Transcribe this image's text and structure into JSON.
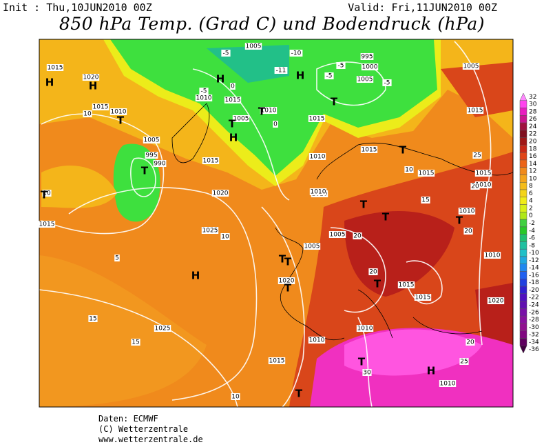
{
  "header": {
    "init": "Init : Thu,10JUN2010 00Z",
    "valid": "Valid: Fri,11JUN2010 00Z",
    "title": "850 hPa Temp. (Grad C) und Bodendruck (hPa)"
  },
  "map_labels": [
    "1015",
    "1020",
    "H",
    "H",
    "10",
    "1015",
    "1010",
    "T",
    "1005",
    "-5",
    "-10",
    "995",
    "1000",
    "-5",
    "-5",
    "1005",
    "-5",
    "-11",
    "H",
    "H",
    "T",
    "-5",
    "1010",
    "1015",
    "0",
    "1010",
    "T",
    "0",
    "1015",
    "1005",
    "T",
    "H",
    "1015",
    "T",
    "1005",
    "995",
    "990",
    "T",
    "1015",
    "1010",
    "1020",
    "1025",
    "10",
    "5",
    "1020",
    "1005",
    "T",
    "H",
    "1010",
    "1015",
    "T",
    "1010",
    "T",
    "1005",
    "20",
    "20",
    "1015",
    "T",
    "15",
    "1010",
    "T",
    "1015",
    "1015",
    "20",
    "10",
    "1020",
    "1010",
    "T",
    "1010",
    "25",
    "1015",
    "T",
    "30",
    "H",
    "1010",
    "25",
    "15",
    "15",
    "1025",
    "10",
    "T",
    "1010",
    "1015",
    "10",
    "T",
    "1005",
    "20",
    "1015",
    "20",
    "1010",
    "T",
    "1005"
  ],
  "colorbar": [
    "32",
    "30",
    "28",
    "26",
    "24",
    "22",
    "20",
    "18",
    "16",
    "14",
    "12",
    "10",
    "8",
    "6",
    "4",
    "2",
    "0",
    "-2",
    "-4",
    "-6",
    "-8",
    "-10",
    "-12",
    "-14",
    "-16",
    "-18",
    "-20",
    "-22",
    "-24",
    "-26",
    "-28",
    "-30",
    "-32",
    "-34",
    "-36"
  ],
  "footer": {
    "source": "Daten: ECMWF",
    "copyright": "(C) Wetterzentrale",
    "website": "www.wetterzentrale.de"
  }
}
